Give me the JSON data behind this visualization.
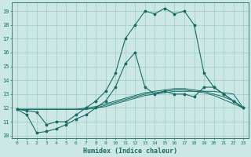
{
  "xlabel": "Humidex (Indice chaleur)",
  "bg_color": "#cce8e5",
  "grid_color": "#9eccc8",
  "line_color": "#1a6b64",
  "xlim": [
    -0.5,
    23.5
  ],
  "ylim": [
    9.8,
    19.6
  ],
  "yticks": [
    10,
    11,
    12,
    13,
    14,
    15,
    16,
    17,
    18,
    19
  ],
  "xticks": [
    0,
    1,
    2,
    3,
    4,
    5,
    6,
    7,
    8,
    9,
    10,
    11,
    12,
    13,
    14,
    15,
    16,
    17,
    18,
    19,
    20,
    21,
    22,
    23
  ],
  "main_line": [
    11.9,
    11.8,
    11.7,
    10.8,
    11.0,
    11.0,
    11.5,
    12.0,
    12.5,
    13.2,
    14.5,
    17.0,
    18.0,
    19.0,
    18.8,
    19.2,
    18.8,
    19.0,
    18.0,
    14.5,
    13.5,
    13.0,
    12.5,
    12.0
  ],
  "extra_line": [
    11.9,
    11.5,
    10.2,
    10.3,
    10.5,
    10.8,
    11.2,
    11.5,
    12.0,
    12.5,
    13.5,
    15.2,
    16.0,
    13.5,
    13.0,
    13.2,
    13.0,
    13.0,
    12.8,
    13.5,
    13.5,
    13.0,
    12.5,
    12.0
  ],
  "smooth1": [
    11.9,
    11.9,
    11.9,
    11.9,
    11.9,
    11.9,
    11.9,
    11.9,
    12.0,
    12.1,
    12.3,
    12.5,
    12.7,
    12.9,
    13.0,
    13.1,
    13.2,
    13.2,
    13.2,
    13.2,
    13.2,
    13.1,
    13.0,
    12.0
  ],
  "smooth2": [
    11.9,
    11.9,
    11.9,
    11.9,
    11.9,
    11.9,
    11.9,
    12.0,
    12.1,
    12.3,
    12.5,
    12.7,
    12.9,
    13.1,
    13.2,
    13.3,
    13.4,
    13.4,
    13.3,
    13.2,
    13.0,
    12.8,
    12.5,
    12.0
  ],
  "smooth3": [
    11.9,
    11.9,
    11.9,
    11.9,
    11.9,
    11.9,
    11.9,
    11.9,
    12.0,
    12.2,
    12.4,
    12.6,
    12.8,
    13.0,
    13.1,
    13.2,
    13.3,
    13.3,
    13.2,
    13.1,
    12.9,
    12.6,
    12.3,
    12.0
  ]
}
